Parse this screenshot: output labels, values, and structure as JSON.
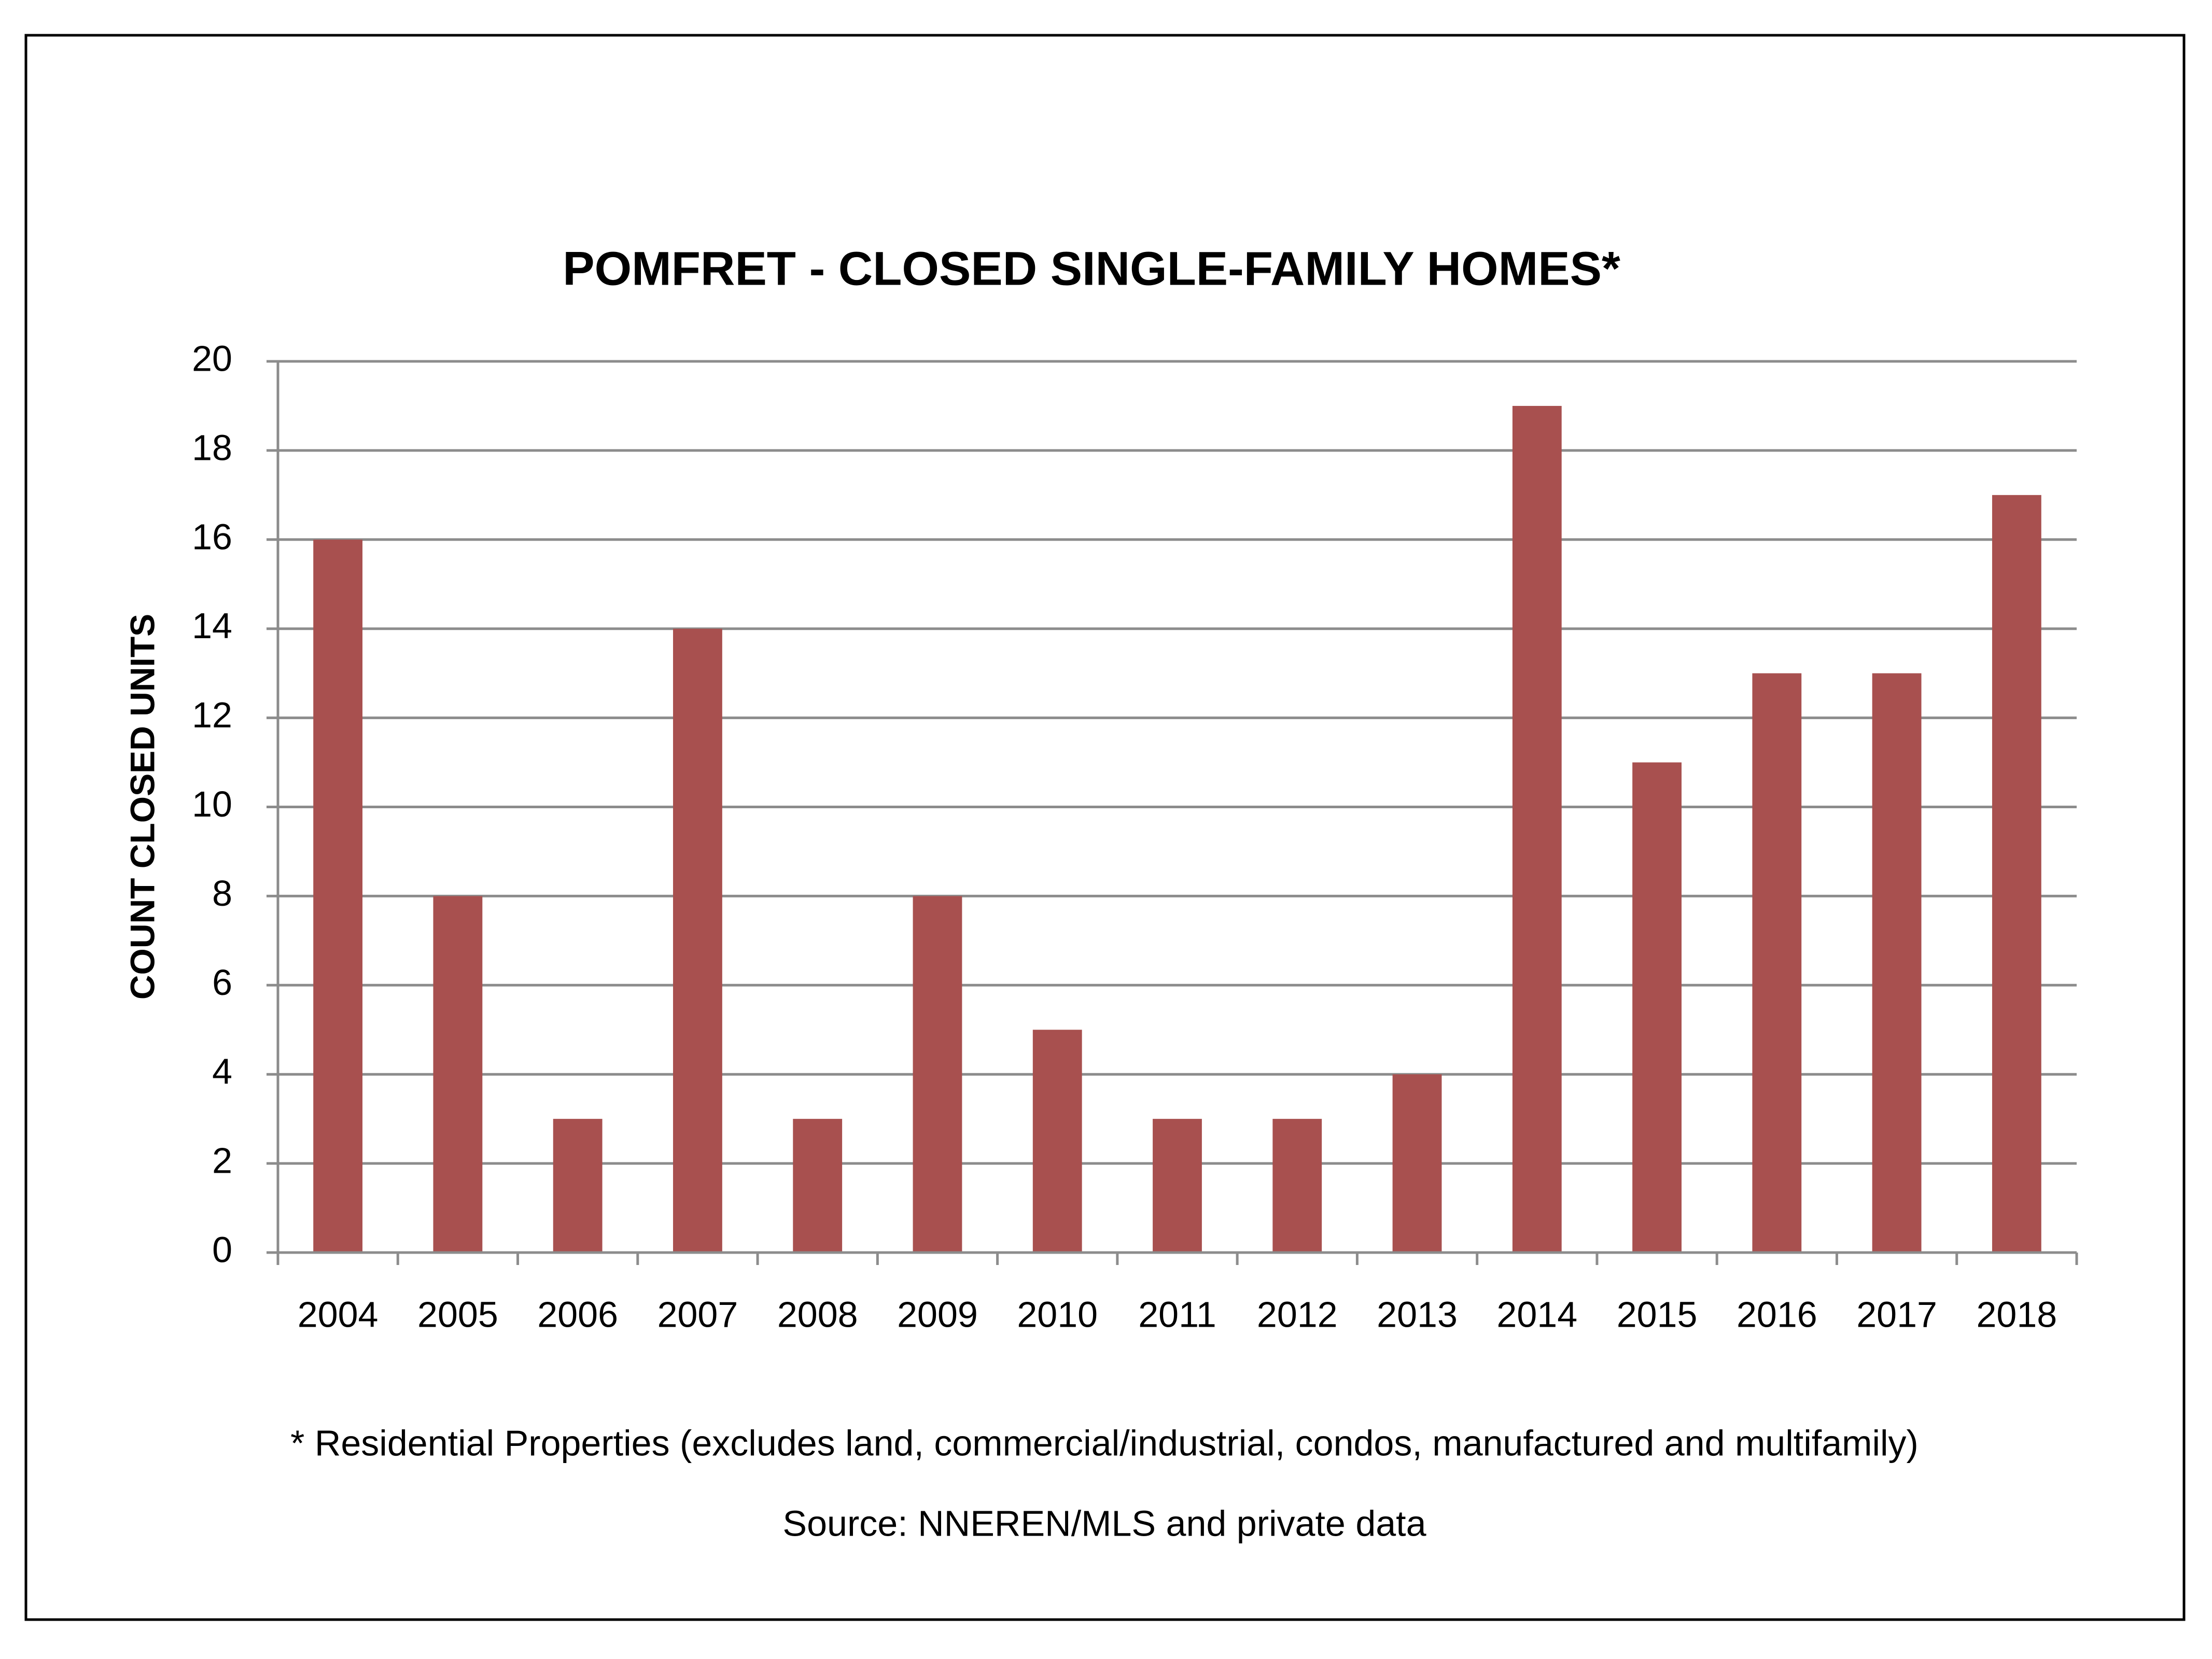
{
  "chart_data": {
    "type": "bar",
    "title": "POMFRET - CLOSED SINGLE-FAMILY HOMES*",
    "ylabel": "COUNT CLOSED UNITS",
    "categories": [
      "2004",
      "2005",
      "2006",
      "2007",
      "2008",
      "2009",
      "2010",
      "2011",
      "2012",
      "2013",
      "2014",
      "2015",
      "2016",
      "2017",
      "2018"
    ],
    "values": [
      16,
      8,
      3,
      14,
      3,
      8,
      5,
      3,
      3,
      4,
      19,
      11,
      13,
      13,
      17
    ],
    "color": "#a8504f",
    "ylim": [
      0,
      20
    ],
    "yticks": [
      0,
      2,
      4,
      6,
      8,
      10,
      12,
      14,
      16,
      18,
      20
    ],
    "grid": true,
    "footnote": "* Residential Properties (excludes land, commercial/industrial, condos, manufactured and multifamily)",
    "source": "Source: NNEREN/MLS and private data"
  }
}
